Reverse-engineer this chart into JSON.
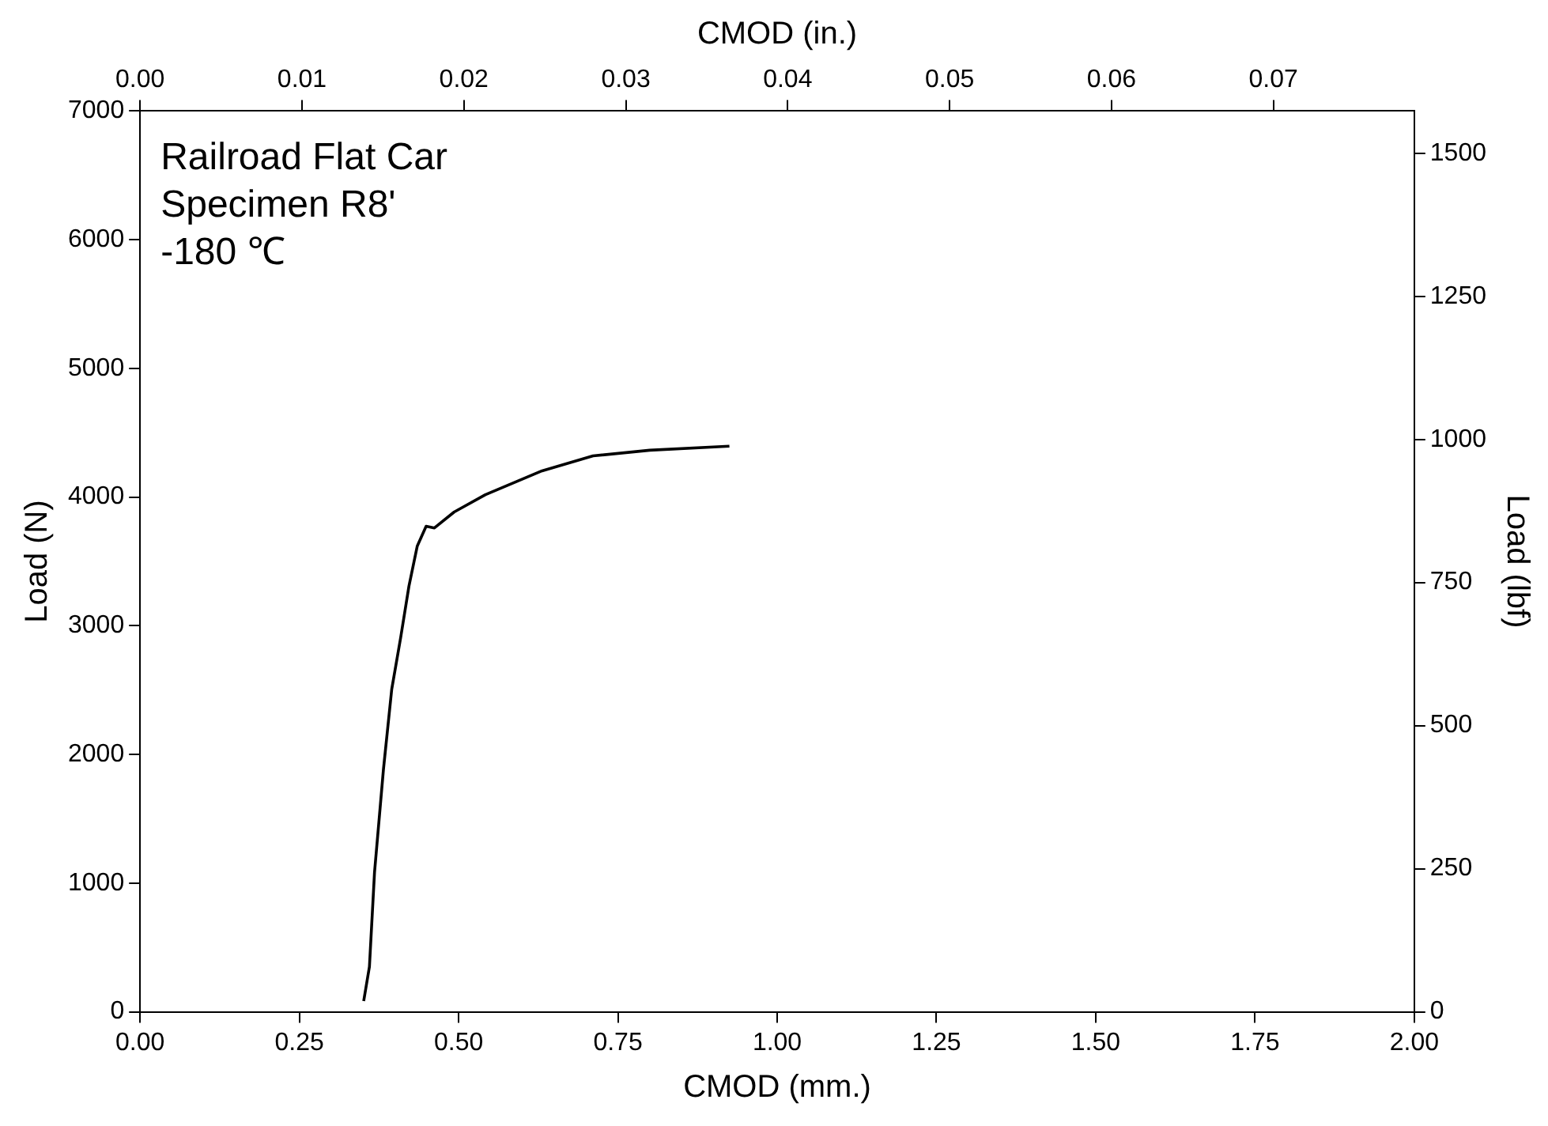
{
  "chart_data": {
    "type": "line",
    "xlabel": "CMOD (mm.)",
    "ylabel": "Load (N)",
    "y2label": "Load (lbf)",
    "x2label": "CMOD (in.)",
    "annotations": [
      "Railroad Flat Car",
      "Specimen R8'",
      "-180 ℃"
    ],
    "x": [
      0.351,
      0.36,
      0.368,
      0.382,
      0.395,
      0.409,
      0.422,
      0.435,
      0.449,
      0.462,
      0.493,
      0.542,
      0.631,
      0.711,
      0.8,
      0.925
    ],
    "values": [
      84,
      351,
      1084,
      1884,
      2507,
      2907,
      3307,
      3618,
      3773,
      3760,
      3884,
      4018,
      4204,
      4320,
      4364,
      4396
    ],
    "color": "#000000",
    "marker": "none",
    "line_style": "solid",
    "grid": false,
    "legend": false,
    "xlim": [
      0,
      2
    ],
    "xticks": [
      {
        "value": 0,
        "label": "0.00"
      },
      {
        "value": 0.25,
        "label": "0.25"
      },
      {
        "value": 0.5,
        "label": "0.50"
      },
      {
        "value": 0.75,
        "label": "0.75"
      },
      {
        "value": 1,
        "label": "1.00"
      },
      {
        "value": 1.25,
        "label": "1.25"
      },
      {
        "value": 1.5,
        "label": "1.50"
      },
      {
        "value": 1.75,
        "label": "1.75"
      },
      {
        "value": 2,
        "label": "2.00"
      }
    ],
    "ylim": [
      0,
      7000
    ],
    "yticks": [
      0,
      1000,
      2000,
      3000,
      4000,
      5000,
      6000,
      7000
    ],
    "y2lim": [
      0,
      1573.7
    ],
    "y2ticks": [
      0,
      250,
      500,
      750,
      1000,
      1250,
      1500
    ],
    "x2lim": [
      0,
      0.0787
    ],
    "x2ticks": [
      {
        "value": 0,
        "label": "0.00"
      },
      {
        "value": 0.01,
        "label": "0.01"
      },
      {
        "value": 0.02,
        "label": "0.02"
      },
      {
        "value": 0.03,
        "label": "0.03"
      },
      {
        "value": 0.04,
        "label": "0.04"
      },
      {
        "value": 0.05,
        "label": "0.05"
      },
      {
        "value": 0.06,
        "label": "0.06"
      },
      {
        "value": 0.07,
        "label": "0.07"
      }
    ]
  }
}
